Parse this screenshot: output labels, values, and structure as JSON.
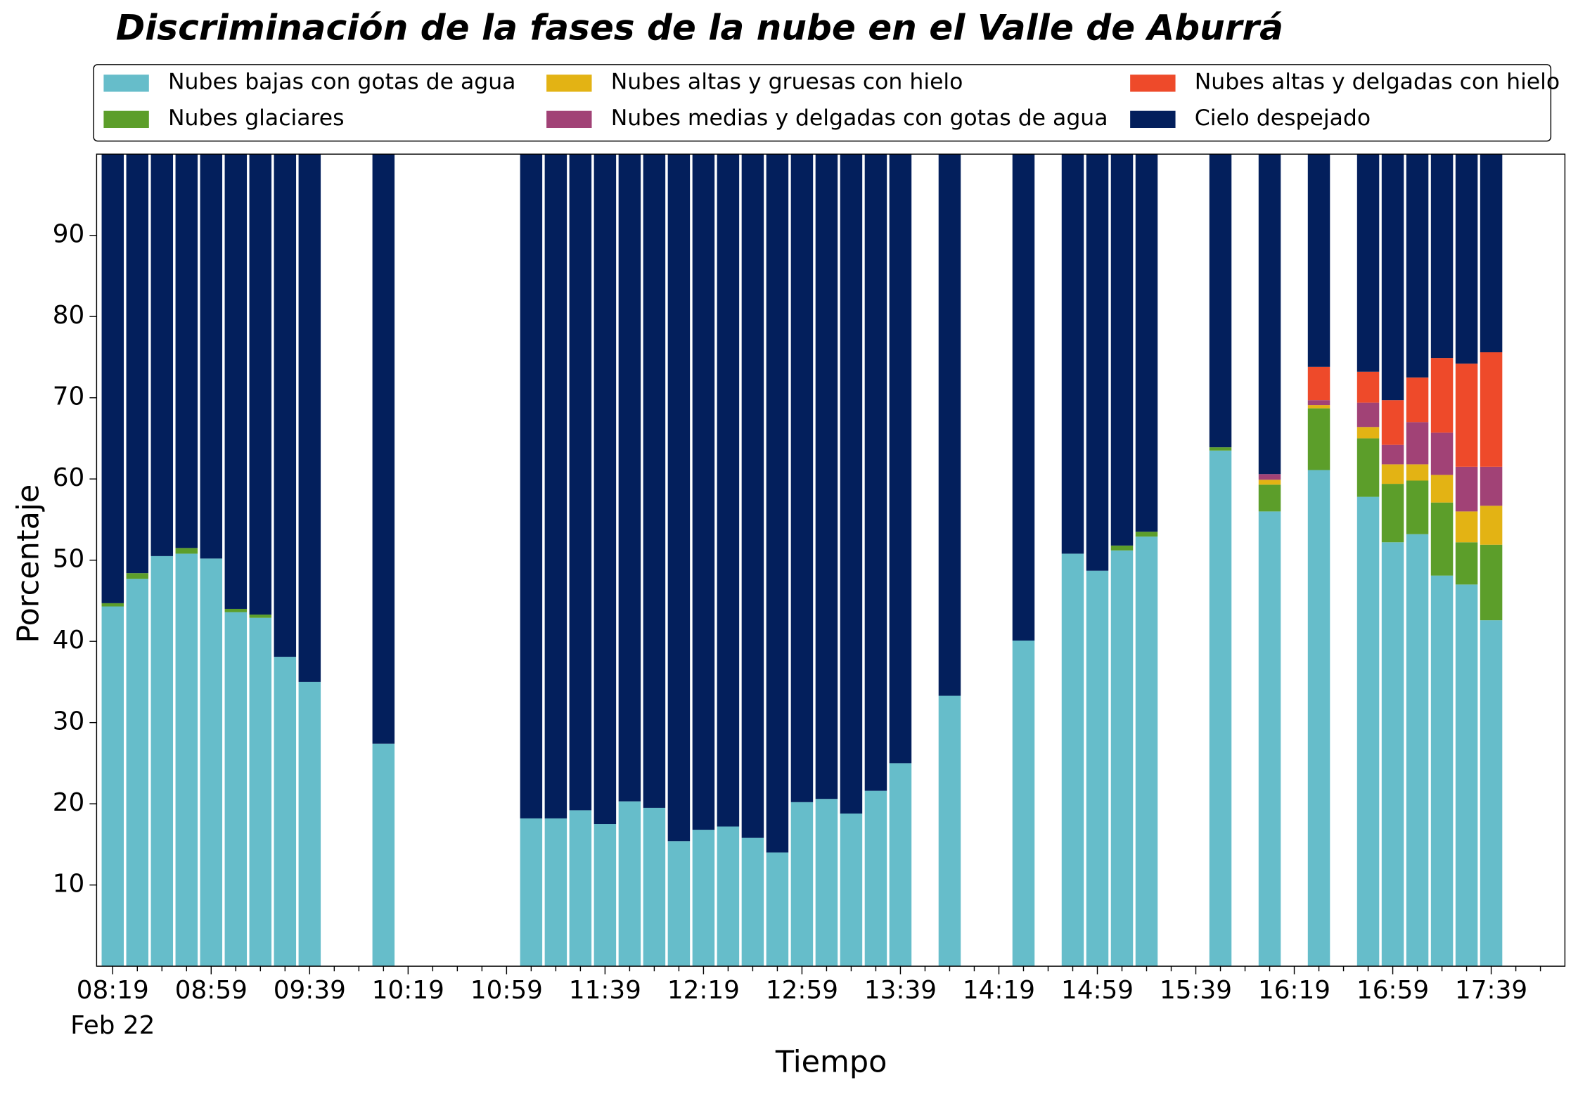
{
  "chart_data": {
    "type": "stacked_bar",
    "title": "Discriminación de la fases de la nube en el Valle de Aburrá",
    "x_label": "Tiempo",
    "y_label": "Porcentaje",
    "date_label": "Feb 22",
    "categories": [
      "08:19",
      null,
      null,
      null,
      "08:59",
      null,
      null,
      null,
      "09:39",
      null,
      null,
      null,
      "10:19",
      null,
      null,
      null,
      "10:59",
      null,
      null,
      null,
      "11:39",
      null,
      null,
      null,
      "12:19",
      null,
      null,
      null,
      "12:59",
      null,
      null,
      null,
      "13:39",
      null,
      null,
      null,
      "14:19",
      null,
      null,
      null,
      "14:59",
      null,
      null,
      null,
      "15:39",
      null,
      null,
      null,
      "16:19",
      null,
      null,
      null,
      "16:59",
      null,
      null,
      null,
      "17:39",
      null,
      null
    ],
    "series": [
      {
        "name": "Nubes bajas con gotas de agua",
        "color": "#66bdca",
        "values": [
          44.3,
          47.7,
          50.5,
          50.8,
          50.2,
          43.6,
          42.9,
          38.1,
          35.0,
          null,
          null,
          27.4,
          null,
          null,
          null,
          null,
          null,
          18.2,
          18.2,
          19.2,
          17.5,
          20.3,
          19.5,
          15.4,
          16.8,
          17.2,
          15.8,
          14.0,
          20.2,
          20.6,
          18.8,
          21.6,
          25.0,
          null,
          33.3,
          null,
          null,
          40.1,
          null,
          50.8,
          48.7,
          51.2,
          52.9,
          null,
          null,
          63.5,
          null,
          56.0,
          null,
          61.1,
          null,
          57.8,
          52.2,
          53.2,
          48.1,
          47.0,
          42.6,
          null,
          null
        ]
      },
      {
        "name": "Nubes glaciares",
        "color": "#5c9e2a",
        "values": [
          0.4,
          0.7,
          0,
          0.7,
          0,
          0.4,
          0.4,
          0,
          0,
          null,
          null,
          0,
          null,
          null,
          null,
          null,
          null,
          0,
          0,
          0,
          0,
          0,
          0,
          0,
          0,
          0,
          0,
          0,
          0,
          0,
          0,
          0,
          0,
          null,
          0,
          null,
          null,
          0,
          null,
          0,
          0,
          0.6,
          0.6,
          null,
          null,
          0.4,
          null,
          3.3,
          null,
          7.6,
          null,
          7.2,
          7.2,
          6.6,
          9.0,
          5.2,
          9.3,
          null,
          null
        ]
      },
      {
        "name": "Nubes altas y gruesas con hielo",
        "color": "#e3b314",
        "values": [
          0,
          0,
          0,
          0,
          0,
          0,
          0,
          0,
          0,
          null,
          null,
          0,
          null,
          null,
          null,
          null,
          null,
          0,
          0,
          0,
          0,
          0,
          0,
          0,
          0,
          0,
          0,
          0,
          0,
          0,
          0,
          0,
          0,
          null,
          0,
          null,
          null,
          0,
          null,
          0,
          0,
          0,
          0,
          null,
          null,
          0,
          null,
          0.6,
          null,
          0.4,
          null,
          1.4,
          2.4,
          2.0,
          3.4,
          3.8,
          4.8,
          null,
          null
        ]
      },
      {
        "name": "Nubes medias y delgadas con gotas de agua",
        "color": "#a14276",
        "values": [
          0,
          0,
          0,
          0,
          0,
          0,
          0,
          0,
          0,
          null,
          null,
          0,
          null,
          null,
          null,
          null,
          null,
          0,
          0,
          0,
          0,
          0,
          0,
          0,
          0,
          0,
          0,
          0,
          0,
          0,
          0,
          0,
          0,
          null,
          0,
          null,
          null,
          0,
          null,
          0,
          0,
          0,
          0,
          null,
          null,
          0,
          null,
          0.7,
          null,
          0.6,
          null,
          3.0,
          2.4,
          5.2,
          5.2,
          5.5,
          4.8,
          null,
          null
        ]
      },
      {
        "name": "Nubes altas y delgadas con hielo",
        "color": "#ee4a2a",
        "values": [
          0,
          0,
          0,
          0,
          0,
          0,
          0,
          0,
          0,
          null,
          null,
          0,
          null,
          null,
          null,
          null,
          null,
          0,
          0,
          0,
          0,
          0,
          0,
          0,
          0,
          0,
          0,
          0,
          0,
          0,
          0,
          0,
          0,
          null,
          0,
          null,
          null,
          0,
          null,
          0,
          0,
          0,
          0,
          null,
          null,
          0,
          null,
          0,
          null,
          4.1,
          null,
          3.8,
          5.5,
          5.5,
          9.2,
          12.7,
          14.1,
          null,
          null
        ]
      },
      {
        "name": "Cielo despejado",
        "color": "#031f5c",
        "values": [
          55.3,
          51.6,
          49.5,
          48.5,
          49.8,
          56.0,
          56.7,
          61.9,
          65.0,
          null,
          null,
          72.6,
          null,
          null,
          null,
          null,
          null,
          81.8,
          81.8,
          80.8,
          82.5,
          79.7,
          80.5,
          84.6,
          83.2,
          82.8,
          84.2,
          86.0,
          79.8,
          79.4,
          81.2,
          78.4,
          75.0,
          null,
          66.7,
          null,
          null,
          59.9,
          null,
          49.2,
          51.3,
          48.2,
          46.5,
          null,
          null,
          36.1,
          null,
          39.4,
          null,
          26.2,
          null,
          26.8,
          30.3,
          27.5,
          25.1,
          25.8,
          24.4,
          null,
          null
        ]
      }
    ],
    "ylim": [
      0,
      100
    ],
    "yticks": [
      10,
      20,
      30,
      40,
      50,
      60,
      70,
      80,
      90
    ],
    "legend": "top"
  }
}
